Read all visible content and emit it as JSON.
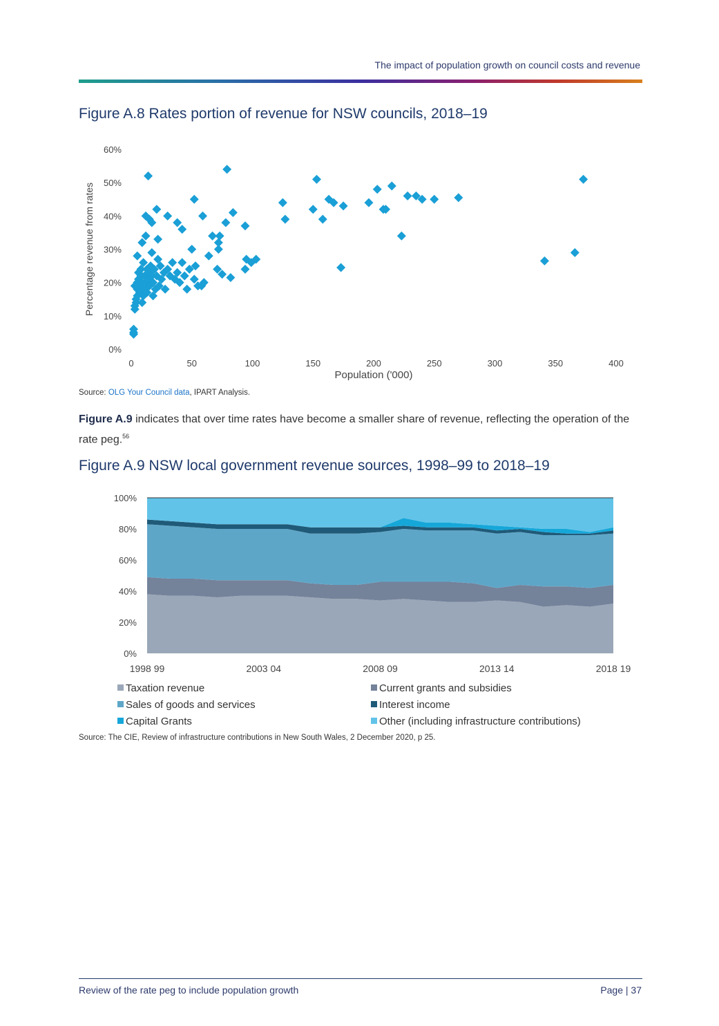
{
  "header": {
    "title": "The impact of population growth on council costs and revenue"
  },
  "figure_a8": {
    "title": "Figure A.8 Rates portion of revenue for NSW councils, 2018–19",
    "source_prefix": "Source: ",
    "source_link": "OLG Your Council data",
    "source_suffix": ", IPART Analysis."
  },
  "paragraph": {
    "bold": "Figure A.9",
    "text": " indicates that over time rates have become a smaller share of revenue, reflecting the operation of the rate peg.",
    "footnote": "56"
  },
  "figure_a9": {
    "title": "Figure A.9 NSW local government revenue sources, 1998–99 to 2018–19",
    "source": "Source: The CIE, Review of infrastructure contributions in New South Wales, 2 December 2020, p 25."
  },
  "footer": {
    "left": "Review of the rate peg to include population growth",
    "right": "Page | 37"
  },
  "chart_data": [
    {
      "type": "scatter",
      "title": "Figure A.8 Rates portion of revenue for NSW councils, 2018–19",
      "xlabel": "Population ('000)",
      "ylabel": "Percentage revenue from rates",
      "xlim": [
        0,
        400
      ],
      "ylim": [
        0,
        60
      ],
      "xticks": [
        "0",
        "50",
        "100",
        "150",
        "200",
        "250",
        "300",
        "350",
        "400"
      ],
      "yticks": [
        "0%",
        "10%",
        "20%",
        "30%",
        "40%",
        "50%",
        "60%"
      ],
      "color": "#1a9fd6",
      "points": [
        [
          2,
          4.5
        ],
        [
          2,
          6
        ],
        [
          2,
          5
        ],
        [
          3,
          12
        ],
        [
          3,
          13
        ],
        [
          4,
          14
        ],
        [
          3,
          19
        ],
        [
          4,
          15
        ],
        [
          5,
          16
        ],
        [
          5,
          18
        ],
        [
          5,
          20
        ],
        [
          6,
          21
        ],
        [
          6,
          23
        ],
        [
          7,
          17
        ],
        [
          7,
          19
        ],
        [
          8,
          22
        ],
        [
          8,
          24
        ],
        [
          9,
          14
        ],
        [
          9,
          20
        ],
        [
          10,
          16
        ],
        [
          10,
          26
        ],
        [
          11,
          18
        ],
        [
          11,
          22
        ],
        [
          12,
          20
        ],
        [
          13,
          24
        ],
        [
          13,
          17
        ],
        [
          14,
          21
        ],
        [
          15,
          19
        ],
        [
          15,
          23
        ],
        [
          16,
          25
        ],
        [
          17,
          22
        ],
        [
          18,
          16
        ],
        [
          18,
          20
        ],
        [
          19,
          24
        ],
        [
          20,
          18
        ],
        [
          21,
          22
        ],
        [
          22,
          27
        ],
        [
          23,
          19
        ],
        [
          24,
          25
        ],
        [
          25,
          21
        ],
        [
          27,
          23
        ],
        [
          28,
          18
        ],
        [
          30,
          24
        ],
        [
          32,
          22
        ],
        [
          34,
          26
        ],
        [
          36,
          21
        ],
        [
          38,
          23
        ],
        [
          40,
          20
        ],
        [
          42,
          26
        ],
        [
          44,
          22
        ],
        [
          46,
          18
        ],
        [
          48,
          24
        ],
        [
          52,
          21
        ],
        [
          55,
          19
        ],
        [
          58,
          19
        ],
        [
          60,
          20
        ],
        [
          5,
          28
        ],
        [
          9,
          32
        ],
        [
          12,
          34
        ],
        [
          17,
          29
        ],
        [
          22,
          33
        ],
        [
          14,
          52
        ],
        [
          12,
          40
        ],
        [
          15,
          39
        ],
        [
          17,
          38
        ],
        [
          21,
          42
        ],
        [
          30,
          40
        ],
        [
          38,
          38
        ],
        [
          42,
          36
        ],
        [
          50,
          30
        ],
        [
          53,
          25
        ],
        [
          52,
          45
        ],
        [
          59,
          40
        ],
        [
          64,
          28
        ],
        [
          67,
          34
        ],
        [
          72,
          30
        ],
        [
          72,
          32
        ],
        [
          73,
          34
        ],
        [
          71,
          24
        ],
        [
          75,
          22.5
        ],
        [
          78,
          38
        ],
        [
          79,
          54
        ],
        [
          82,
          21.5
        ],
        [
          84,
          41
        ],
        [
          94,
          24
        ],
        [
          95,
          27
        ],
        [
          94,
          37
        ],
        [
          99,
          26
        ],
        [
          103,
          27
        ],
        [
          125,
          44
        ],
        [
          127,
          39
        ],
        [
          150,
          42
        ],
        [
          153,
          51
        ],
        [
          158,
          39
        ],
        [
          163,
          45
        ],
        [
          167,
          44
        ],
        [
          173,
          24.5
        ],
        [
          175,
          43
        ],
        [
          196,
          44
        ],
        [
          203,
          48
        ],
        [
          208,
          42
        ],
        [
          210,
          42
        ],
        [
          215,
          49
        ],
        [
          223,
          34
        ],
        [
          228,
          46
        ],
        [
          235,
          46
        ],
        [
          240,
          45
        ],
        [
          250,
          45
        ],
        [
          270,
          45.5
        ],
        [
          341,
          26.5
        ],
        [
          366,
          29
        ],
        [
          373,
          51
        ]
      ]
    },
    {
      "type": "area",
      "stacked": true,
      "title": "Figure A.9 NSW local government revenue sources, 1998–99 to 2018–19",
      "ylim": [
        0,
        100
      ],
      "yticks": [
        "0%",
        "20%",
        "40%",
        "60%",
        "80%",
        "100%"
      ],
      "x_tick_labels": [
        "1998 99",
        "2003 04",
        "2008 09",
        "2013 14",
        "2018 19"
      ],
      "x": [
        "1998-99",
        "1999-00",
        "2000-01",
        "2001-02",
        "2002-03",
        "2003-04",
        "2004-05",
        "2005-06",
        "2006-07",
        "2007-08",
        "2008-09",
        "2009-10",
        "2010-11",
        "2011-12",
        "2012-13",
        "2013-14",
        "2014-15",
        "2015-16",
        "2016-17",
        "2017-18",
        "2018-19"
      ],
      "series": [
        {
          "name": "Taxation revenue",
          "color": "#9aa7b8",
          "values": [
            38,
            37,
            37,
            36,
            37,
            37,
            37,
            36,
            35,
            35,
            34,
            35,
            34,
            33,
            33,
            34,
            33,
            30,
            31,
            30,
            32
          ]
        },
        {
          "name": "Current grants and subsidies",
          "color": "#74829a",
          "values": [
            11,
            11,
            11,
            11,
            10,
            10,
            10,
            9,
            9,
            9,
            12,
            11,
            12,
            13,
            12,
            8,
            11,
            13,
            12,
            12,
            12
          ]
        },
        {
          "name": "Sales of goods and services",
          "color": "#5ea6c8",
          "values": [
            34,
            34,
            33,
            33,
            33,
            33,
            33,
            32,
            33,
            33,
            32,
            34,
            33,
            33,
            34,
            35,
            34,
            33,
            33,
            34,
            33
          ]
        },
        {
          "name": "Interest income",
          "color": "#1f5a78",
          "values": [
            3,
            3,
            3,
            3,
            3,
            3,
            3,
            4,
            4,
            4,
            3,
            2,
            2,
            2,
            2,
            2,
            2,
            2,
            1,
            1,
            2
          ]
        },
        {
          "name": "Capital Grants",
          "color": "#16a7d9",
          "values": [
            0,
            0,
            0,
            0,
            0,
            0,
            0,
            0,
            0,
            0,
            0,
            5,
            3,
            3,
            2,
            3,
            1,
            2,
            3,
            1,
            2
          ]
        },
        {
          "name": "Other (including infrastructure contributions)",
          "color": "#62c3e8",
          "values": [
            14,
            15,
            16,
            17,
            17,
            17,
            17,
            19,
            19,
            19,
            19,
            13,
            16,
            16,
            17,
            18,
            19,
            20,
            20,
            22,
            19
          ]
        }
      ]
    }
  ]
}
